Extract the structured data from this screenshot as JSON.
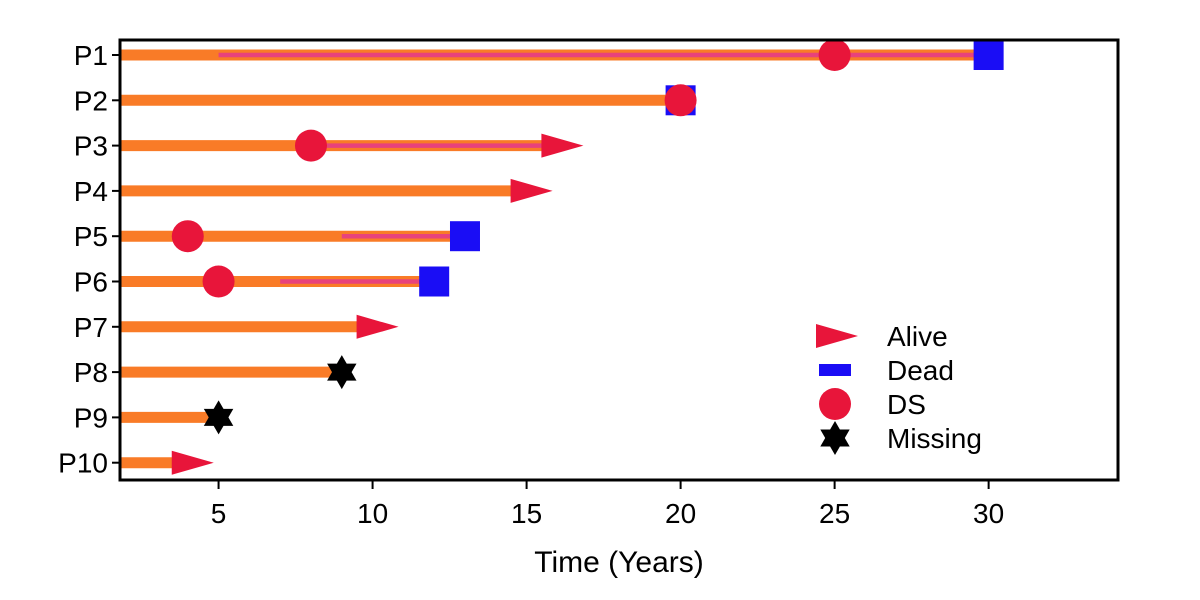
{
  "chart_data": {
    "type": "swimmer",
    "xlabel": "Time (Years)",
    "ylabel": "",
    "xlim": [
      1.8,
      34.2
    ],
    "xticks": [
      5,
      10,
      15,
      20,
      25,
      30
    ],
    "categories": [
      "P1",
      "P2",
      "P3",
      "P4",
      "P5",
      "P6",
      "P7",
      "P8",
      "P9",
      "P10"
    ],
    "bars": [
      {
        "id": "P1",
        "end": 30,
        "overlay_from": 5,
        "overlay_to": 30,
        "events": [
          {
            "type": "DS",
            "x": 25
          },
          {
            "type": "Dead",
            "x": 30
          }
        ]
      },
      {
        "id": "P2",
        "end": 20,
        "events": [
          {
            "type": "Dead",
            "x": 20
          },
          {
            "type": "DS",
            "x": 20
          }
        ]
      },
      {
        "id": "P3",
        "end": 16,
        "overlay_from": 8,
        "overlay_to": 16,
        "events": [
          {
            "type": "DS",
            "x": 8
          },
          {
            "type": "Alive",
            "x": 16
          }
        ]
      },
      {
        "id": "P4",
        "end": 15,
        "events": [
          {
            "type": "Alive",
            "x": 15
          }
        ]
      },
      {
        "id": "P5",
        "end": 13,
        "overlay_from": 9,
        "overlay_to": 13,
        "events": [
          {
            "type": "DS",
            "x": 4
          },
          {
            "type": "Dead",
            "x": 13
          }
        ]
      },
      {
        "id": "P6",
        "end": 12,
        "overlay_from": 7,
        "overlay_to": 12,
        "events": [
          {
            "type": "DS",
            "x": 5
          },
          {
            "type": "Dead",
            "x": 12
          }
        ]
      },
      {
        "id": "P7",
        "end": 10,
        "events": [
          {
            "type": "Alive",
            "x": 10
          }
        ]
      },
      {
        "id": "P8",
        "end": 9,
        "events": [
          {
            "type": "Missing",
            "x": 9
          }
        ]
      },
      {
        "id": "P9",
        "end": 5,
        "events": [
          {
            "type": "Missing",
            "x": 5
          }
        ]
      },
      {
        "id": "P10",
        "end": 4,
        "events": [
          {
            "type": "Alive",
            "x": 4
          }
        ]
      }
    ],
    "legend": {
      "position": "bottom-right",
      "items": [
        {
          "type": "Alive",
          "label": "Alive"
        },
        {
          "type": "Dead",
          "label": "Dead"
        },
        {
          "type": "DS",
          "label": "DS"
        },
        {
          "type": "Missing",
          "label": "Missing"
        }
      ]
    },
    "colors": {
      "bar": "#f97b27",
      "overlay": "#e8427b",
      "alive": "#e8153a",
      "dead": "#1a0df5",
      "ds": "#e8153a",
      "missing": "#000000"
    },
    "grid": false
  }
}
